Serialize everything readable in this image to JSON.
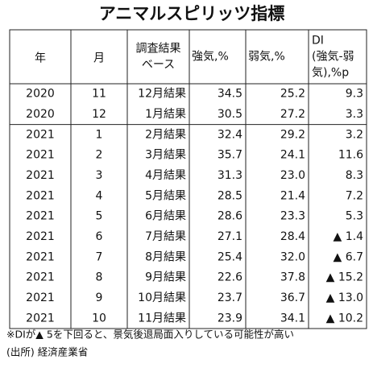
{
  "title": "アニマルスピリッツ指標",
  "table": {
    "header": [
      [
        "年"
      ],
      [
        "月"
      ],
      [
        "調査結果",
        "ベース"
      ],
      [
        "強気,%"
      ],
      [
        "弱気,%"
      ],
      [
        "DI",
        "(強気-弱",
        "気),%p"
      ]
    ],
    "rows": [
      [
        "2020",
        "11",
        "12月結果",
        "34.5",
        "25.2",
        "9.3"
      ],
      [
        "2020",
        "12",
        "1月結果",
        "30.5",
        "27.2",
        "3.3"
      ],
      [
        "2021",
        "1",
        "2月結果",
        "32.4",
        "29.2",
        "3.2"
      ],
      [
        "2021",
        "2",
        "3月結果",
        "35.7",
        "24.1",
        "11.6"
      ],
      [
        "2021",
        "3",
        "4月結果",
        "31.3",
        "23.0",
        "8.3"
      ],
      [
        "2021",
        "4",
        "5月結果",
        "28.5",
        "21.4",
        "7.2"
      ],
      [
        "2021",
        "5",
        "6月結果",
        "28.6",
        "23.3",
        "5.3"
      ],
      [
        "2021",
        "6",
        "7月結果",
        "27.1",
        "28.4",
        "▲ 1.4"
      ],
      [
        "2021",
        "7",
        "8月結果",
        "25.4",
        "32.0",
        "▲ 6.7"
      ],
      [
        "2021",
        "8",
        "9月結果",
        "22.6",
        "37.8",
        "▲ 15.2"
      ],
      [
        "2021",
        "9",
        "10月結果",
        "23.7",
        "36.7",
        "▲ 13.0"
      ],
      [
        "2021",
        "10",
        "11月結果",
        "23.9",
        "34.1",
        "▲ 10.2"
      ]
    ]
  },
  "notes": [
    "※DIが▲ 5を下回ると、景気後退局面入りしている可能性が高い",
    "(出所) 経済産業省"
  ]
}
